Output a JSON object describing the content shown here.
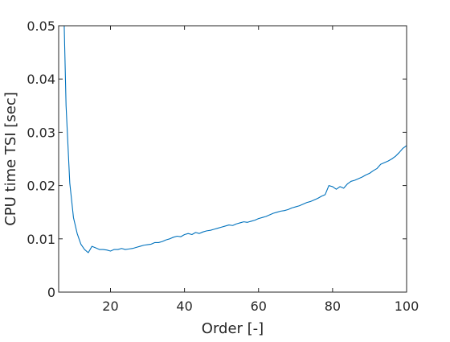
{
  "chart_data": {
    "type": "line",
    "xlabel": "Order [-]",
    "ylabel": "CPU time TSI [sec]",
    "xlim": [
      6,
      100
    ],
    "ylim": [
      0,
      0.05
    ],
    "xticks": [
      20,
      40,
      60,
      80,
      100
    ],
    "xtick_labels": [
      "20",
      "40",
      "60",
      "80",
      "100"
    ],
    "yticks": [
      0,
      0.01,
      0.02,
      0.03,
      0.04,
      0.05
    ],
    "ytick_labels": [
      "0",
      "0.01",
      "0.02",
      "0.03",
      "0.04",
      "0.05"
    ],
    "grid": false,
    "box": true,
    "colors": {
      "line": "#0072bd",
      "axes": "#262626"
    },
    "series": [
      {
        "x": [
          7.5,
          8,
          9,
          10,
          11,
          12,
          13,
          14,
          15,
          16,
          17,
          18,
          19,
          20,
          21,
          22,
          23,
          24,
          25,
          26,
          27,
          28,
          29,
          30,
          31,
          32,
          33,
          34,
          35,
          36,
          37,
          38,
          39,
          40,
          41,
          42,
          43,
          44,
          45,
          46,
          47,
          48,
          49,
          50,
          51,
          52,
          53,
          54,
          55,
          56,
          57,
          58,
          59,
          60,
          61,
          62,
          63,
          64,
          65,
          66,
          67,
          68,
          69,
          70,
          71,
          72,
          73,
          74,
          75,
          76,
          77,
          78,
          79,
          80,
          81,
          82,
          83,
          84,
          85,
          86,
          87,
          88,
          89,
          90,
          91,
          92,
          93,
          94,
          95,
          96,
          97,
          98,
          99,
          100
        ],
        "y": [
          0.05,
          0.035,
          0.0205,
          0.014,
          0.011,
          0.009,
          0.008,
          0.0074,
          0.0086,
          0.0083,
          0.008,
          0.008,
          0.0079,
          0.0077,
          0.008,
          0.008,
          0.0082,
          0.008,
          0.0081,
          0.0082,
          0.0084,
          0.0086,
          0.0088,
          0.0089,
          0.009,
          0.0093,
          0.0093,
          0.0095,
          0.0098,
          0.01,
          0.0103,
          0.0105,
          0.0104,
          0.0108,
          0.011,
          0.0108,
          0.0112,
          0.011,
          0.0113,
          0.0115,
          0.0116,
          0.0118,
          0.012,
          0.0122,
          0.0124,
          0.0126,
          0.0125,
          0.0128,
          0.013,
          0.0132,
          0.0131,
          0.0133,
          0.0135,
          0.0138,
          0.014,
          0.0142,
          0.0145,
          0.0148,
          0.015,
          0.0152,
          0.0153,
          0.0155,
          0.0158,
          0.016,
          0.0162,
          0.0165,
          0.0168,
          0.017,
          0.0173,
          0.0176,
          0.018,
          0.0183,
          0.02,
          0.0198,
          0.0193,
          0.0198,
          0.0195,
          0.0203,
          0.0208,
          0.021,
          0.0213,
          0.0216,
          0.022,
          0.0223,
          0.0228,
          0.0232,
          0.024,
          0.0243,
          0.0246,
          0.025,
          0.0255,
          0.0262,
          0.027,
          0.0275
        ]
      }
    ]
  }
}
